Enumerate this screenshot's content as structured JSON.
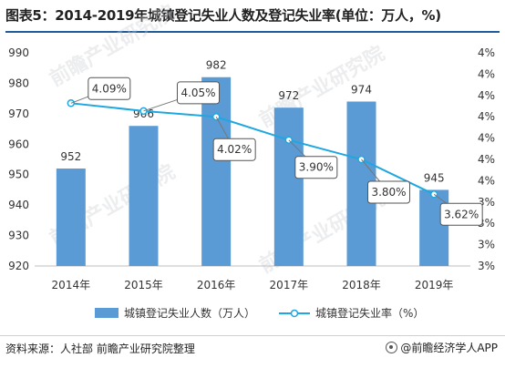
{
  "title": "图表5：2014-2019年城镇登记失业人数及登记失业率(单位：万人，%)",
  "source": "资料来源：人社部 前瞻产业研究院整理",
  "brand": "@前瞻经济学人APP",
  "watermark": "前瞻产业研究院",
  "colors": {
    "bar": "#5b9bd5",
    "line": "#1ea7e0",
    "title_rule": "#1f5c99"
  },
  "chart_data": {
    "type": "bar+line",
    "categories": [
      "2014年",
      "2015年",
      "2016年",
      "2017年",
      "2018年",
      "2019年"
    ],
    "series": [
      {
        "name": "城镇登记失业人数（万人）",
        "type": "bar",
        "axis": "left",
        "values": [
          952,
          966,
          982,
          972,
          974,
          945
        ],
        "labels": [
          "952",
          "966",
          "982",
          "972",
          "974",
          "945"
        ]
      },
      {
        "name": "城镇登记失业率（%）",
        "type": "line",
        "axis": "right",
        "values": [
          4.09,
          4.05,
          4.02,
          3.9,
          3.8,
          3.62
        ],
        "labels": [
          "4.09%",
          "4.05%",
          "4.02%",
          "3.90%",
          "3.80%",
          "3.62%"
        ]
      }
    ],
    "left_axis": {
      "ylim": [
        920,
        990
      ],
      "ticks": [
        "920",
        "930",
        "940",
        "950",
        "960",
        "970",
        "980",
        "990"
      ]
    },
    "right_axis": {
      "ticks": [
        "3%",
        "3%",
        "3%",
        "3%",
        "4%",
        "4%",
        "4%",
        "4%",
        "4%",
        "4%",
        "4%"
      ]
    },
    "legend_position": "bottom",
    "grid": false
  }
}
